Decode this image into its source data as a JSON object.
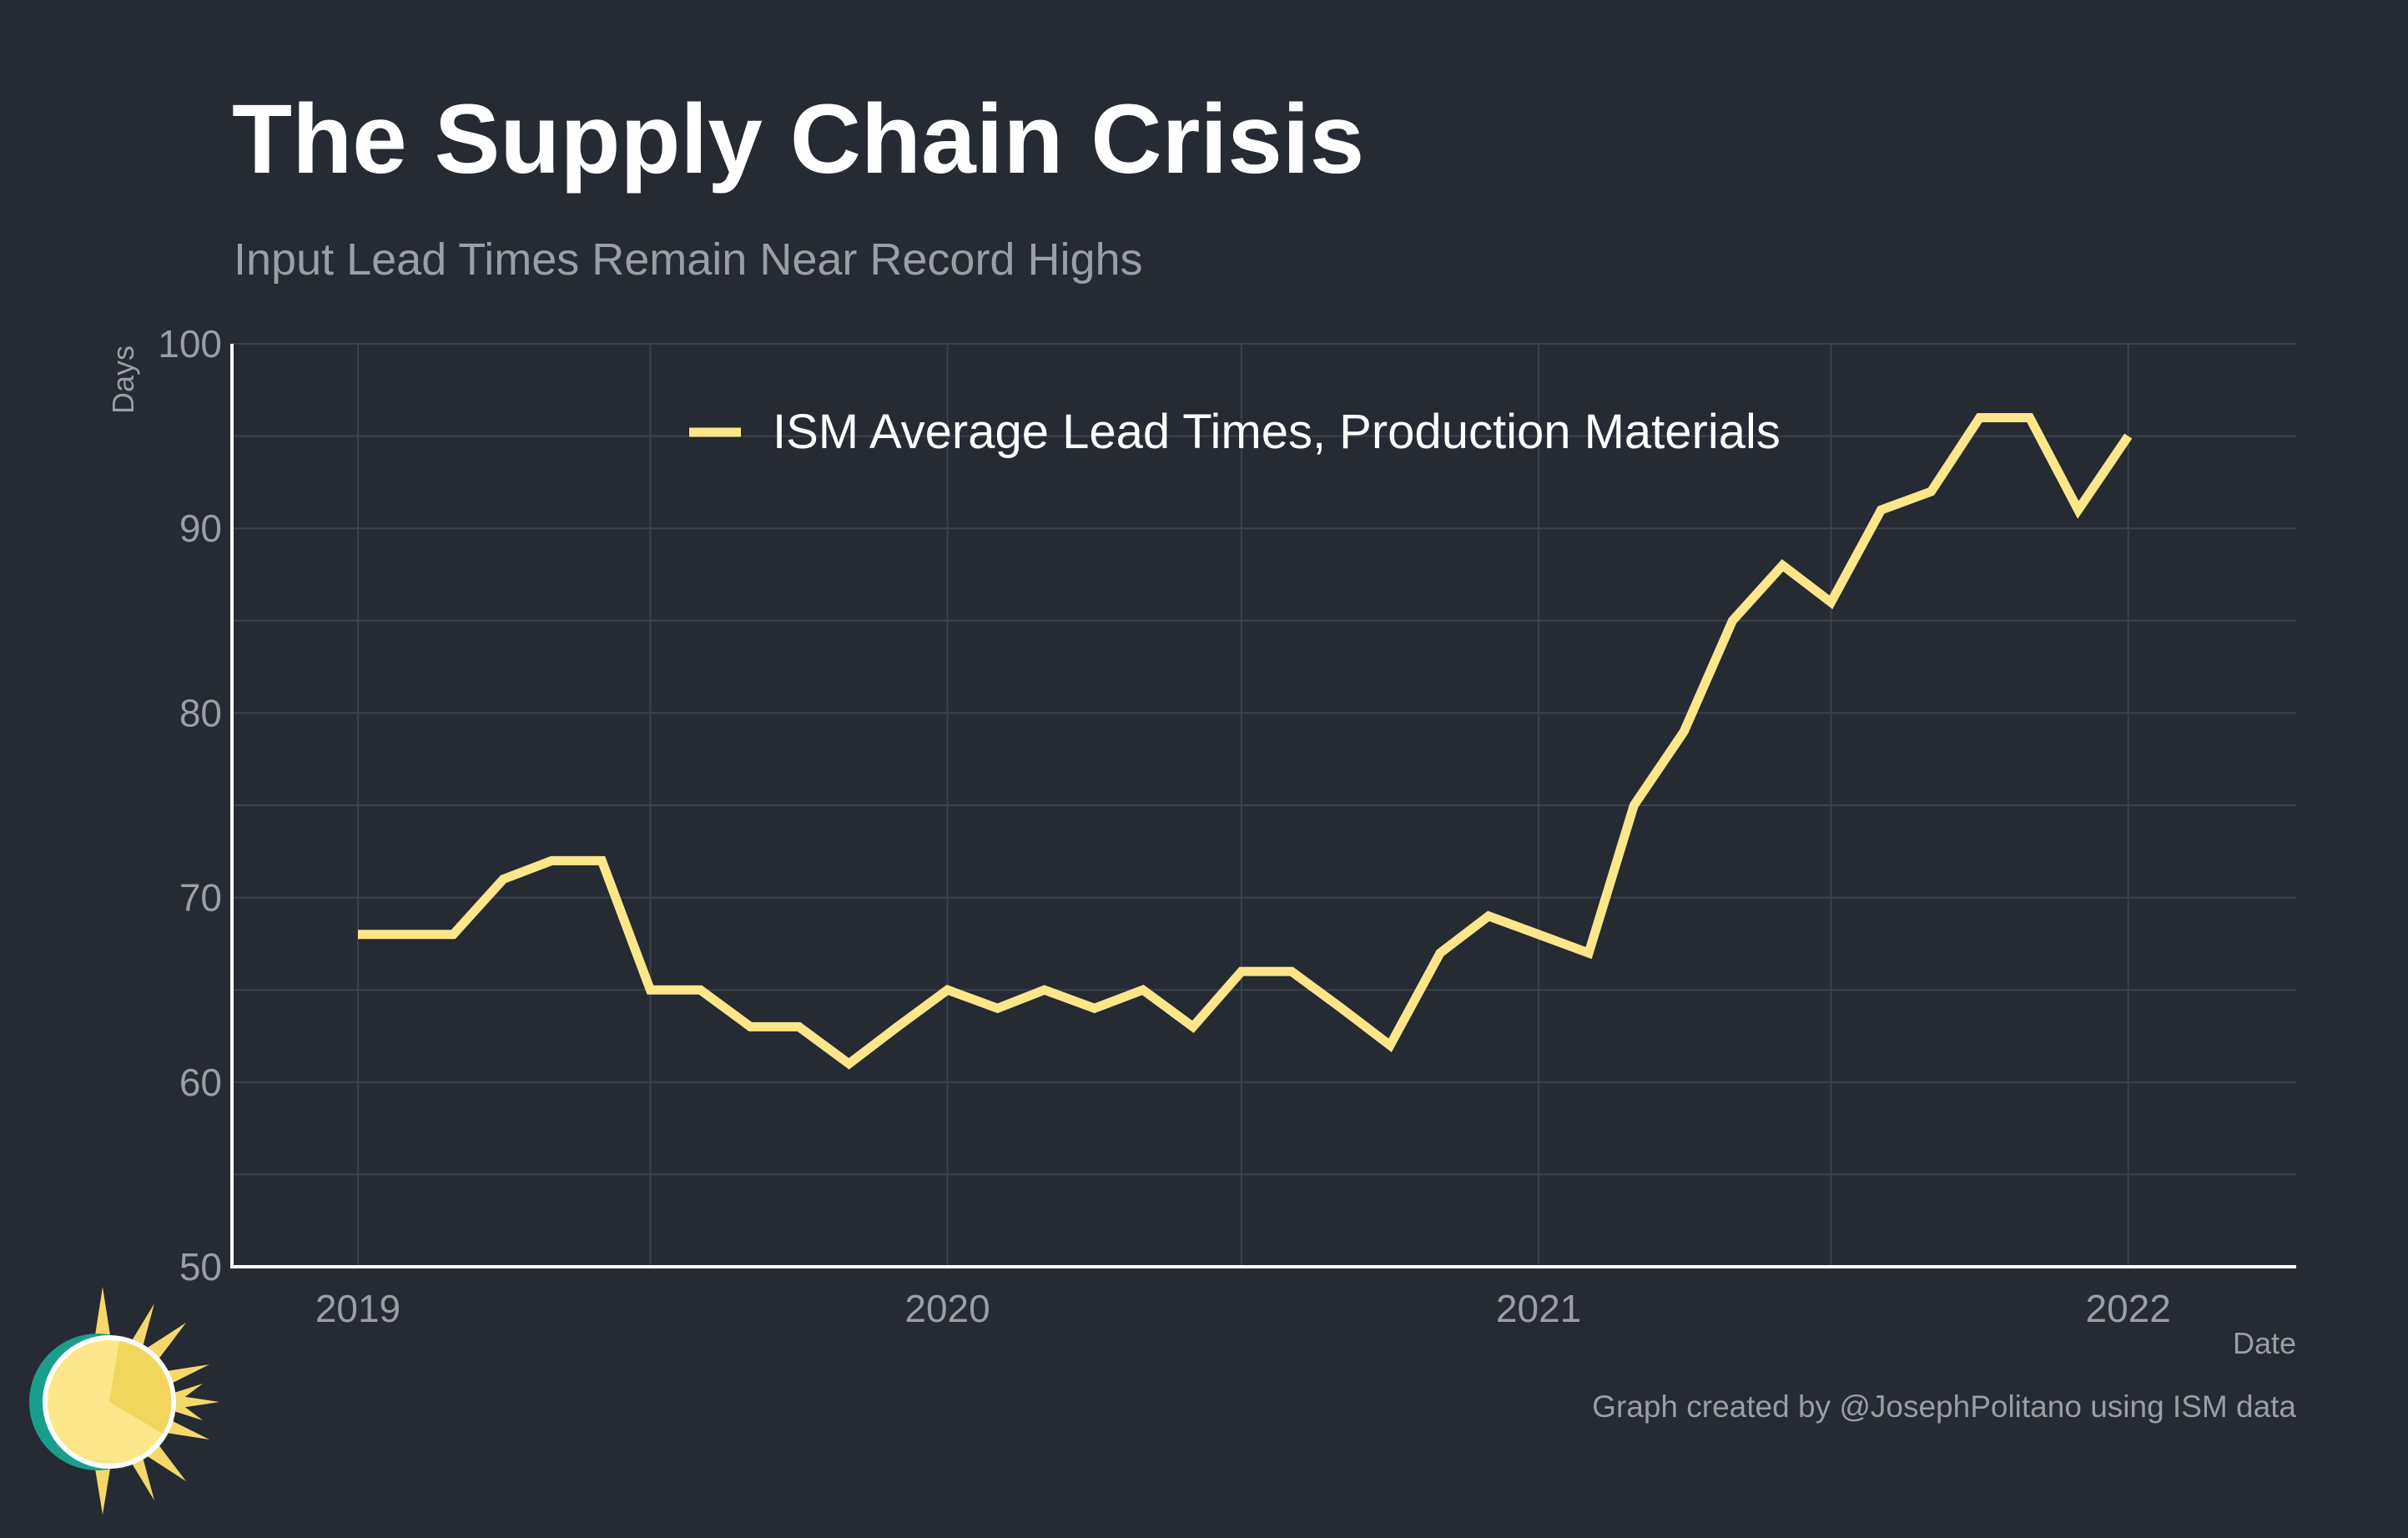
{
  "title": "The Supply Chain Crisis",
  "subtitle": "Input Lead Times Remain Near Record Highs",
  "credit": "Graph created by @JosephPolitano using ISM data",
  "colors": {
    "background": "#252a33",
    "line": "#fde68a",
    "grid": "#3c414b",
    "axis": "#ffffff",
    "muted_text": "#9a9ea6"
  },
  "chart_data": {
    "type": "line",
    "xlabel": "Date",
    "ylabel": "Days",
    "ylim": [
      50,
      100
    ],
    "yticks": [
      50,
      60,
      70,
      80,
      90,
      100
    ],
    "xlim": [
      "2018-10-15",
      "2022-04-15"
    ],
    "xticks": [
      "2019",
      "2020",
      "2021",
      "2022"
    ],
    "grid": true,
    "legend_position": "top",
    "series": [
      {
        "name": "ISM Average Lead Times, Production Materials",
        "x": [
          "2019-01",
          "2019-02",
          "2019-03",
          "2019-04",
          "2019-05",
          "2019-06",
          "2019-07",
          "2019-08",
          "2019-09",
          "2019-10",
          "2019-11",
          "2019-12",
          "2020-01",
          "2020-02",
          "2020-03",
          "2020-04",
          "2020-05",
          "2020-06",
          "2020-07",
          "2020-08",
          "2020-09",
          "2020-10",
          "2020-11",
          "2020-12",
          "2021-01",
          "2021-02",
          "2021-03",
          "2021-04",
          "2021-05",
          "2021-06",
          "2021-07",
          "2021-08",
          "2021-09",
          "2021-10",
          "2021-11",
          "2021-12",
          "2022-01"
        ],
        "values": [
          68,
          68,
          68,
          71,
          72,
          72,
          65,
          65,
          63,
          63,
          61,
          63,
          65,
          64,
          65,
          64,
          65,
          63,
          66,
          66,
          64,
          62,
          67,
          69,
          68,
          67,
          75,
          79,
          85,
          88,
          86,
          91,
          92,
          96,
          96,
          91,
          95
        ]
      }
    ]
  }
}
